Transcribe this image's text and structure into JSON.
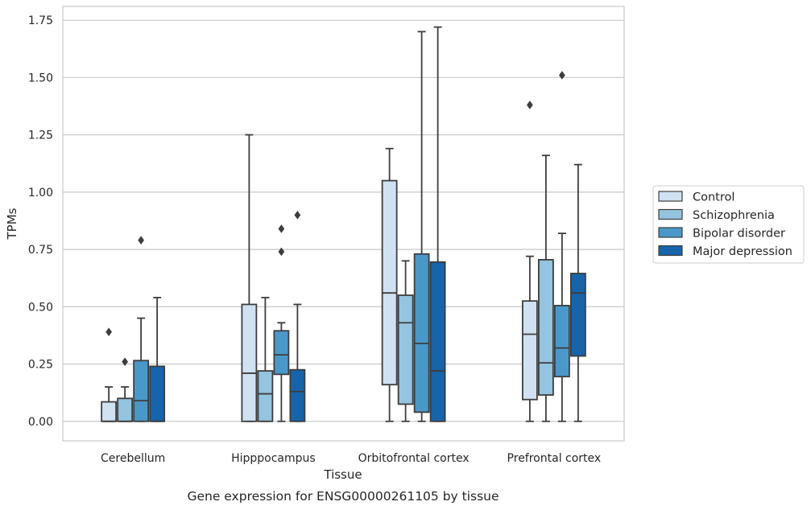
{
  "chart_data": {
    "type": "box",
    "caption": "Gene expression for ENSG00000261105 by tissue",
    "xlabel": "Tissue",
    "ylabel": "TPMs",
    "ylim": [
      -0.085,
      1.81
    ],
    "yticks": [
      "0.00",
      "0.25",
      "0.50",
      "0.75",
      "1.00",
      "1.25",
      "1.50",
      "1.75"
    ],
    "ytick_values": [
      0,
      0.25,
      0.5,
      0.75,
      1.0,
      1.25,
      1.5,
      1.75
    ],
    "grid": "horizontal",
    "legend_position": "right",
    "categories": [
      "Cerebellum",
      "Hipppocampus",
      "Orbitofrontal cortex",
      "Prefrontal cortex"
    ],
    "series": [
      {
        "name": "Control",
        "color": "#d0e1f2",
        "boxes": [
          {
            "whislo": 0.0,
            "q1": 0.0,
            "med": 0.0,
            "q3": 0.085,
            "whishi": 0.15,
            "fliers": [
              0.39
            ]
          },
          {
            "whislo": 0.0,
            "q1": 0.0,
            "med": 0.21,
            "q3": 0.51,
            "whishi": 1.25,
            "fliers": []
          },
          {
            "whislo": 0.0,
            "q1": 0.16,
            "med": 0.56,
            "q3": 1.05,
            "whishi": 1.19,
            "fliers": []
          },
          {
            "whislo": 0.0,
            "q1": 0.095,
            "med": 0.38,
            "q3": 0.525,
            "whishi": 0.72,
            "fliers": [
              1.38
            ]
          }
        ]
      },
      {
        "name": "Schizophrenia",
        "color": "#94c4df",
        "boxes": [
          {
            "whislo": 0.0,
            "q1": 0.0,
            "med": 0.0,
            "q3": 0.1,
            "whishi": 0.15,
            "fliers": [
              0.26
            ]
          },
          {
            "whislo": 0.0,
            "q1": 0.0,
            "med": 0.12,
            "q3": 0.22,
            "whishi": 0.54,
            "fliers": []
          },
          {
            "whislo": 0.0,
            "q1": 0.075,
            "med": 0.43,
            "q3": 0.55,
            "whishi": 0.7,
            "fliers": []
          },
          {
            "whislo": 0.0,
            "q1": 0.115,
            "med": 0.255,
            "q3": 0.705,
            "whishi": 1.16,
            "fliers": []
          }
        ]
      },
      {
        "name": "Bipolar disorder",
        "color": "#4a98c9",
        "boxes": [
          {
            "whislo": 0.0,
            "q1": 0.0,
            "med": 0.09,
            "q3": 0.265,
            "whishi": 0.45,
            "fliers": [
              0.79
            ]
          },
          {
            "whislo": 0.0,
            "q1": 0.205,
            "med": 0.29,
            "q3": 0.395,
            "whishi": 0.43,
            "fliers": [
              0.74,
              0.84
            ]
          },
          {
            "whislo": 0.0,
            "q1": 0.04,
            "med": 0.34,
            "q3": 0.73,
            "whishi": 1.7,
            "fliers": []
          },
          {
            "whislo": 0.0,
            "q1": 0.195,
            "med": 0.32,
            "q3": 0.505,
            "whishi": 0.82,
            "fliers": [
              1.51
            ]
          }
        ]
      },
      {
        "name": "Major depression",
        "color": "#1764ab",
        "boxes": [
          {
            "whislo": 0.0,
            "q1": 0.0,
            "med": 0.0,
            "q3": 0.24,
            "whishi": 0.54,
            "fliers": []
          },
          {
            "whislo": 0.0,
            "q1": 0.0,
            "med": 0.13,
            "q3": 0.225,
            "whishi": 0.51,
            "fliers": [
              0.9
            ]
          },
          {
            "whislo": 0.0,
            "q1": 0.0,
            "med": 0.22,
            "q3": 0.695,
            "whishi": 1.72,
            "fliers": []
          },
          {
            "whislo": 0.0,
            "q1": 0.285,
            "med": 0.56,
            "q3": 0.645,
            "whishi": 1.12,
            "fliers": []
          }
        ]
      }
    ]
  }
}
